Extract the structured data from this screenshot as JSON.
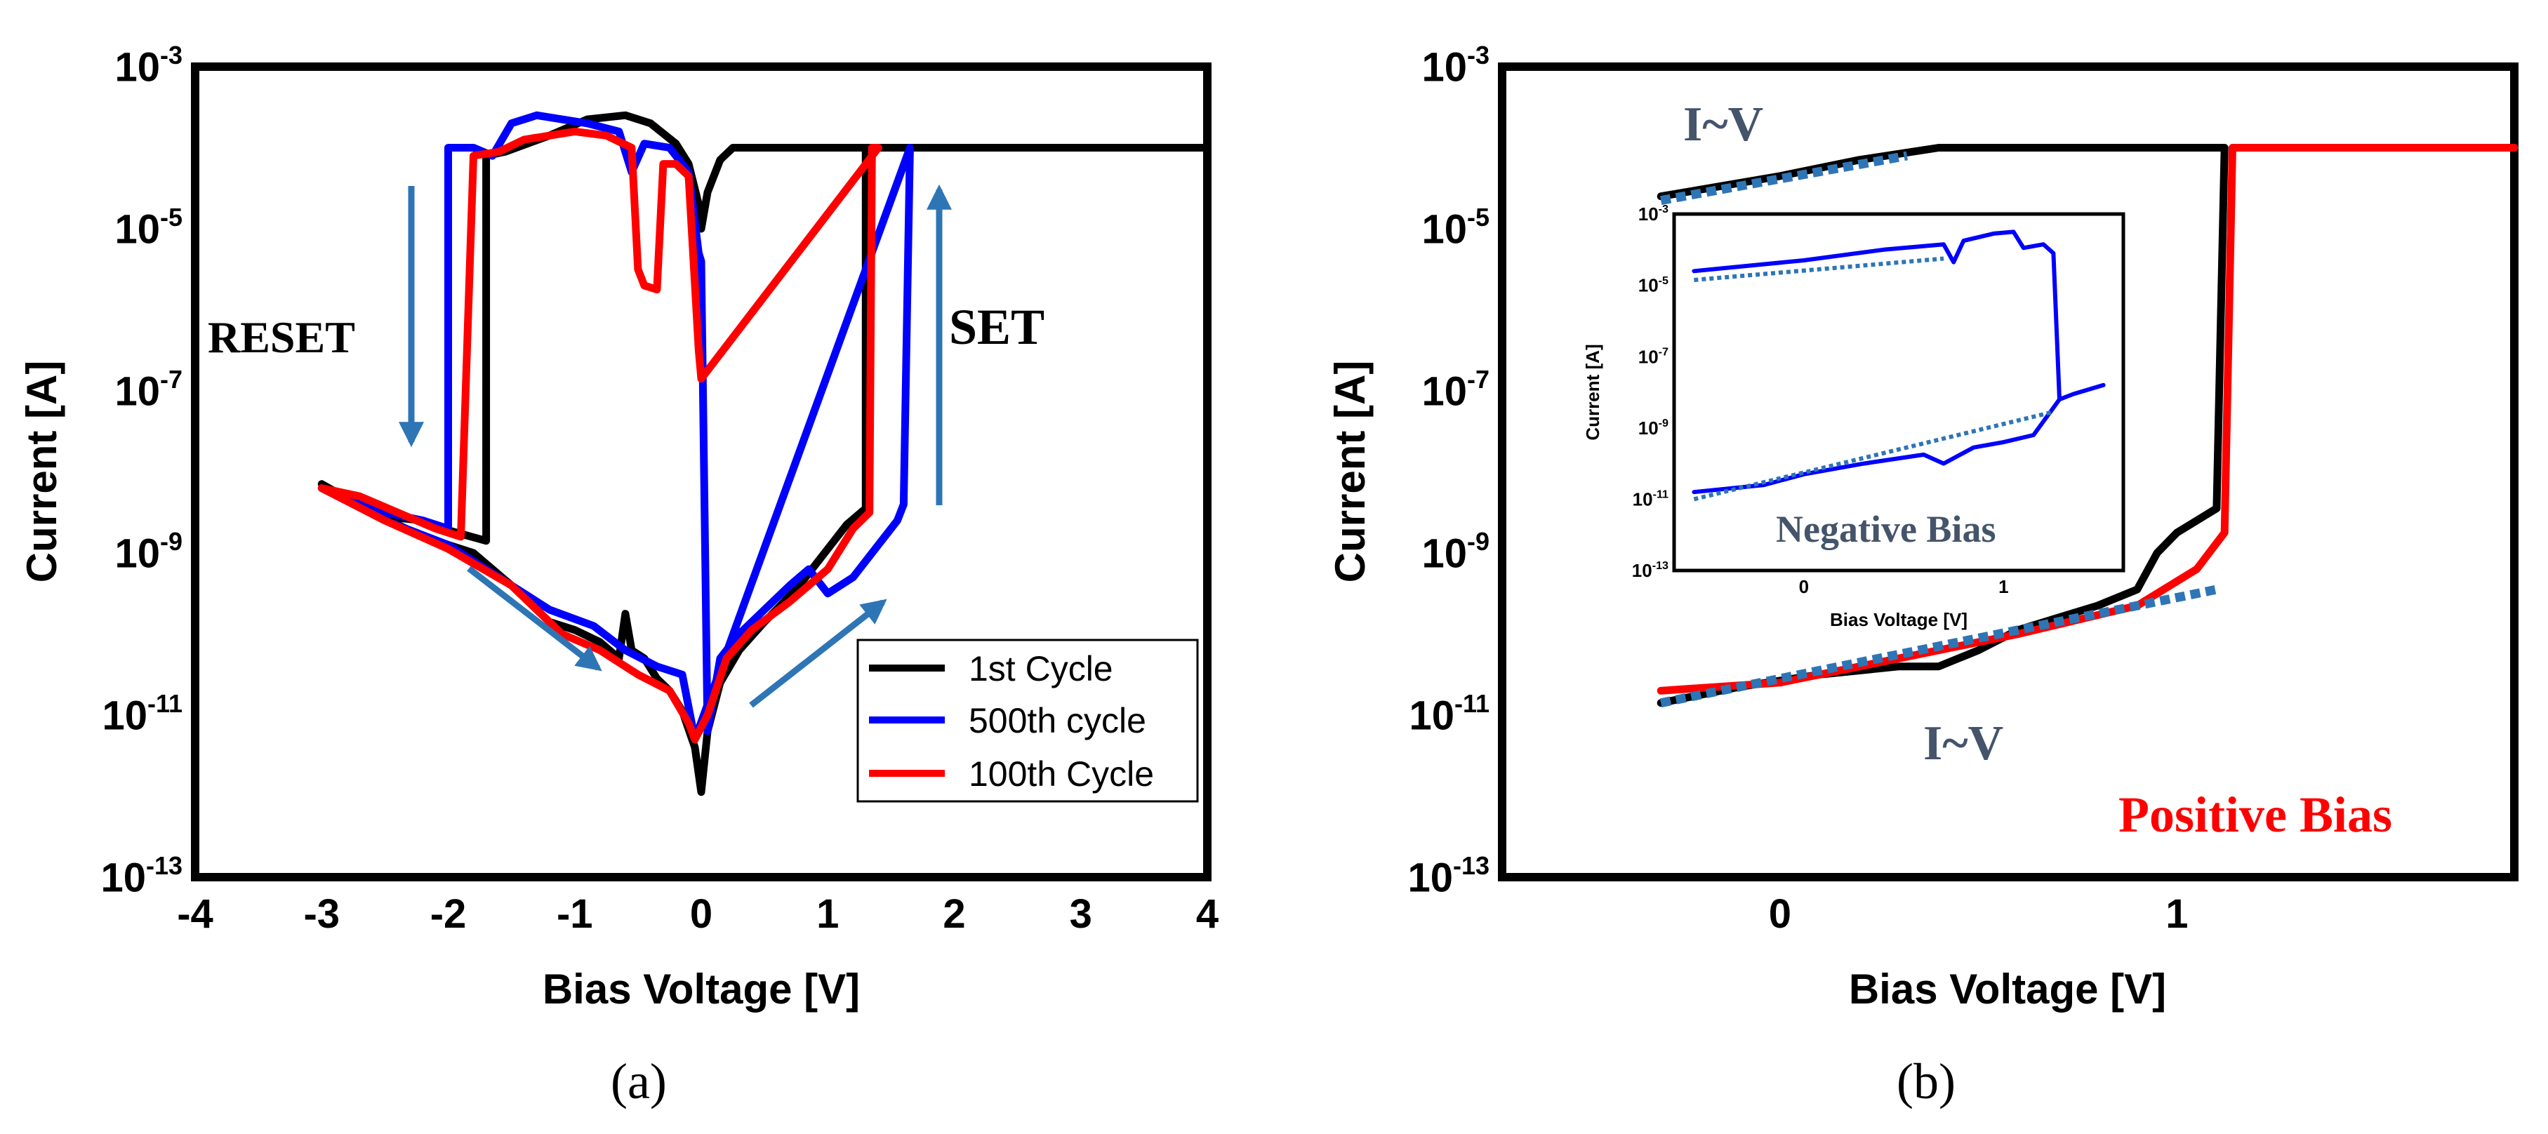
{
  "colors": {
    "black_curve": "#000000",
    "blue_curve": "#0000ff",
    "red_curve": "#ff0000",
    "arrow": "#2e75b6",
    "fit": "#2e75b6",
    "label_slate": "#44546a",
    "label_red": "#ff0000"
  },
  "chart_data": [
    {
      "id": "a",
      "type": "line",
      "subfig_label": "(a)",
      "xlabel": "Bias Voltage [V]",
      "ylabel": "Current [A]",
      "yscale": "log",
      "xlim": [
        -4,
        4
      ],
      "ylim_exp": [
        -13,
        -3
      ],
      "x_ticks": [
        -4,
        -3,
        -2,
        -1,
        0,
        1,
        2,
        3,
        4
      ],
      "x_tick_labels": [
        "-4",
        "-3",
        "-2",
        "-1",
        "0",
        "1",
        "2",
        "3",
        "4"
      ],
      "y_ticks_exp": [
        -13,
        -11,
        -9,
        -7,
        -5,
        -3
      ],
      "y_tick_base": "10",
      "y_tick_exponents": [
        "-13",
        "-11",
        "-9",
        "-7",
        "-5",
        "-3"
      ],
      "annotations": [
        "RESET",
        "SET"
      ],
      "legend": [
        "1st Cycle",
        "500th cycle",
        "100th Cycle"
      ],
      "series": [
        {
          "name": "1st Cycle",
          "color": "#000000",
          "points": [
            [
              -3.0,
              -8.15
            ],
            [
              -2.9,
              -8.25
            ],
            [
              -2.7,
              -8.4
            ],
            [
              -2.5,
              -8.55
            ],
            [
              -2.2,
              -8.6
            ],
            [
              -2.0,
              -8.72
            ],
            [
              -1.7,
              -8.85
            ],
            [
              -1.7,
              -4.1
            ],
            [
              -1.55,
              -4.05
            ],
            [
              -1.2,
              -3.85
            ],
            [
              -0.9,
              -3.65
            ],
            [
              -0.6,
              -3.6
            ],
            [
              -0.4,
              -3.7
            ],
            [
              -0.2,
              -3.95
            ],
            [
              -0.1,
              -4.2
            ],
            [
              -0.02,
              -4.7
            ],
            [
              0.0,
              -5.0
            ],
            [
              0.05,
              -4.55
            ],
            [
              0.15,
              -4.15
            ],
            [
              0.25,
              -4.0
            ],
            [
              0.6,
              -4.0
            ],
            [
              1.0,
              -4.0
            ],
            [
              3.0,
              -4.0
            ],
            [
              4.0,
              -4.0
            ],
            [
              1.3,
              -4.0
            ],
            [
              1.3,
              -8.45
            ],
            [
              1.15,
              -8.65
            ],
            [
              1.0,
              -8.95
            ],
            [
              0.75,
              -9.45
            ],
            [
              0.5,
              -9.85
            ],
            [
              0.3,
              -10.2
            ],
            [
              0.15,
              -10.6
            ],
            [
              0.05,
              -11.2
            ],
            [
              0.0,
              -11.95
            ],
            [
              -0.05,
              -11.4
            ],
            [
              -0.15,
              -10.95
            ],
            [
              -0.25,
              -10.7
            ],
            [
              -0.35,
              -10.55
            ],
            [
              -0.45,
              -10.3
            ],
            [
              -0.55,
              -10.2
            ],
            [
              -0.6,
              -9.75
            ],
            [
              -0.65,
              -10.3
            ],
            [
              -0.8,
              -10.1
            ],
            [
              -1.0,
              -9.95
            ],
            [
              -1.2,
              -9.85
            ],
            [
              -1.5,
              -9.4
            ],
            [
              -1.8,
              -9.0
            ],
            [
              -2.2,
              -8.8
            ],
            [
              -2.6,
              -8.5
            ],
            [
              -3.0,
              -8.15
            ]
          ]
        },
        {
          "name": "500th cycle",
          "color": "#0000ff",
          "points": [
            [
              -3.0,
              -8.2
            ],
            [
              -2.8,
              -8.3
            ],
            [
              -2.5,
              -8.5
            ],
            [
              -2.2,
              -8.6
            ],
            [
              -2.0,
              -8.7
            ],
            [
              -2.0,
              -4.0
            ],
            [
              -1.8,
              -4.0
            ],
            [
              -1.65,
              -4.1
            ],
            [
              -1.5,
              -3.7
            ],
            [
              -1.3,
              -3.6
            ],
            [
              -1.1,
              -3.65
            ],
            [
              -0.9,
              -3.7
            ],
            [
              -0.65,
              -3.8
            ],
            [
              -0.55,
              -4.3
            ],
            [
              -0.45,
              -3.95
            ],
            [
              -0.25,
              -4.0
            ],
            [
              -0.1,
              -4.3
            ],
            [
              -0.02,
              -5.3
            ],
            [
              0.0,
              -5.4
            ],
            [
              0.05,
              -11.2
            ],
            [
              0.15,
              -10.3
            ],
            [
              0.3,
              -10.0
            ],
            [
              0.5,
              -9.7
            ],
            [
              0.7,
              -9.4
            ],
            [
              0.85,
              -9.2
            ],
            [
              1.0,
              -9.5
            ],
            [
              1.2,
              -9.3
            ],
            [
              1.4,
              -8.9
            ],
            [
              1.55,
              -8.6
            ],
            [
              1.6,
              -8.4
            ],
            [
              1.65,
              -4.0
            ],
            [
              -0.05,
              -11.3
            ],
            [
              -0.15,
              -10.5
            ],
            [
              -0.35,
              -10.4
            ],
            [
              -0.6,
              -10.2
            ],
            [
              -0.85,
              -9.9
            ],
            [
              -1.2,
              -9.7
            ],
            [
              -1.6,
              -9.3
            ],
            [
              -2.0,
              -8.9
            ],
            [
              -2.5,
              -8.6
            ],
            [
              -3.0,
              -8.2
            ]
          ]
        },
        {
          "name": "100th Cycle",
          "color": "#ff0000",
          "points": [
            [
              -3.0,
              -8.2
            ],
            [
              -2.7,
              -8.3
            ],
            [
              -2.4,
              -8.5
            ],
            [
              -2.1,
              -8.7
            ],
            [
              -1.9,
              -8.8
            ],
            [
              -1.8,
              -4.1
            ],
            [
              -1.6,
              -4.05
            ],
            [
              -1.4,
              -3.9
            ],
            [
              -1.0,
              -3.8
            ],
            [
              -0.75,
              -3.85
            ],
            [
              -0.55,
              -4.0
            ],
            [
              -0.5,
              -5.5
            ],
            [
              -0.45,
              -5.7
            ],
            [
              -0.35,
              -5.75
            ],
            [
              -0.3,
              -4.2
            ],
            [
              -0.2,
              -4.2
            ],
            [
              -0.1,
              -4.35
            ],
            [
              -0.02,
              -6.5
            ],
            [
              0.0,
              -6.85
            ],
            [
              1.4,
              -4.0
            ],
            [
              1.35,
              -4.0
            ],
            [
              1.33,
              -8.5
            ],
            [
              1.2,
              -8.7
            ],
            [
              1.0,
              -9.2
            ],
            [
              0.7,
              -9.6
            ],
            [
              0.4,
              -9.95
            ],
            [
              0.2,
              -10.3
            ],
            [
              0.05,
              -11.0
            ],
            [
              -0.05,
              -11.3
            ],
            [
              -0.1,
              -11.1
            ],
            [
              -0.25,
              -10.7
            ],
            [
              -0.5,
              -10.5
            ],
            [
              -0.8,
              -10.2
            ],
            [
              -1.1,
              -10.0
            ],
            [
              -1.5,
              -9.4
            ],
            [
              -2.0,
              -8.95
            ],
            [
              -2.5,
              -8.6
            ],
            [
              -3.0,
              -8.2
            ]
          ]
        }
      ]
    },
    {
      "id": "b",
      "type": "line",
      "subfig_label": "(b)",
      "xlabel": "Bias Voltage [V]",
      "ylabel": "Current [A]",
      "yscale": "log",
      "xlim": [
        -0.7,
        1.85
      ],
      "ylim_exp": [
        -13,
        -3
      ],
      "x_ticks": [
        0,
        1
      ],
      "x_tick_labels": [
        "0",
        "1"
      ],
      "y_ticks_exp": [
        -13,
        -11,
        -9,
        -7,
        -5,
        -3
      ],
      "y_tick_base": "10",
      "y_tick_exponents": [
        "-13",
        "-11",
        "-9",
        "-7",
        "-5",
        "-3"
      ],
      "annotations": [
        "I~V",
        "I~V",
        "Positive Bias"
      ],
      "series": [
        {
          "name": "black",
          "color": "#000000",
          "points": [
            [
              -0.3,
              -4.6
            ],
            [
              0.0,
              -4.35
            ],
            [
              0.2,
              -4.15
            ],
            [
              0.4,
              -4.0
            ],
            [
              1.12,
              -4.0
            ],
            [
              1.12,
              -4.0
            ],
            [
              1.1,
              -8.45
            ],
            [
              1.05,
              -8.6
            ],
            [
              1.0,
              -8.75
            ],
            [
              0.95,
              -9.0
            ],
            [
              0.9,
              -9.45
            ],
            [
              0.8,
              -9.65
            ],
            [
              0.6,
              -9.95
            ],
            [
              0.5,
              -10.2
            ],
            [
              0.4,
              -10.4
            ],
            [
              0.3,
              -10.4
            ],
            [
              0.1,
              -10.5
            ],
            [
              -0.1,
              -10.65
            ],
            [
              -0.3,
              -10.85
            ]
          ]
        },
        {
          "name": "red",
          "color": "#ff0000",
          "points": [
            [
              -0.3,
              -10.7
            ],
            [
              0.0,
              -10.6
            ],
            [
              0.3,
              -10.3
            ],
            [
              0.6,
              -10.0
            ],
            [
              0.9,
              -9.65
            ],
            [
              1.05,
              -9.2
            ],
            [
              1.12,
              -8.75
            ],
            [
              1.14,
              -4.0
            ],
            [
              1.85,
              -4.0
            ]
          ]
        },
        {
          "name": "I~V fit (high)",
          "color": "#2e75b6",
          "dashed": true,
          "points": [
            [
              -0.3,
              -4.65
            ],
            [
              0.32,
              -4.1
            ]
          ]
        },
        {
          "name": "I~V fit (low)",
          "color": "#2e75b6",
          "dashed": true,
          "points": [
            [
              -0.3,
              -10.85
            ],
            [
              1.1,
              -9.45
            ]
          ]
        }
      ],
      "inset": {
        "title": "Negative Bias",
        "xlabel": "Bias Voltage [V]",
        "ylabel": "Current [A]",
        "xlim": [
          -0.65,
          1.6
        ],
        "ylim_exp": [
          -13,
          -3
        ],
        "x_ticks": [
          0,
          1
        ],
        "x_tick_labels": [
          "0",
          "1"
        ],
        "y_ticks_exp": [
          -13,
          -11,
          -9,
          -7,
          -5,
          -3
        ],
        "y_tick_base": "10",
        "y_tick_exponents": [
          "-13",
          "-11",
          "-9",
          "-7",
          "-5",
          "-3"
        ],
        "series": [
          {
            "name": "blue",
            "color": "#0000ff",
            "points": [
              [
                -0.55,
                -4.6
              ],
              [
                0.0,
                -4.3
              ],
              [
                0.4,
                -4.0
              ],
              [
                0.7,
                -3.85
              ],
              [
                0.75,
                -4.35
              ],
              [
                0.8,
                -3.75
              ],
              [
                0.95,
                -3.55
              ],
              [
                1.05,
                -3.5
              ],
              [
                1.1,
                -3.95
              ],
              [
                1.2,
                -3.85
              ],
              [
                1.25,
                -4.1
              ],
              [
                1.28,
                -8.2
              ],
              [
                1.35,
                -8.05
              ],
              [
                1.5,
                -7.8
              ]
            ]
          },
          {
            "name": "blue low",
            "color": "#0000ff",
            "points": [
              [
                -0.55,
                -10.8
              ],
              [
                -0.2,
                -10.6
              ],
              [
                0.0,
                -10.3
              ],
              [
                0.3,
                -10.0
              ],
              [
                0.6,
                -9.75
              ],
              [
                0.7,
                -10.0
              ],
              [
                0.85,
                -9.55
              ],
              [
                1.0,
                -9.4
              ],
              [
                1.15,
                -9.2
              ],
              [
                1.28,
                -8.2
              ]
            ]
          },
          {
            "name": "fit high",
            "color": "#2e75b6",
            "dashed": true,
            "points": [
              [
                -0.55,
                -4.85
              ],
              [
                0.7,
                -4.25
              ]
            ]
          },
          {
            "name": "fit low",
            "color": "#2e75b6",
            "dashed": true,
            "points": [
              [
                -0.55,
                -11.0
              ],
              [
                1.25,
                -8.55
              ]
            ]
          }
        ]
      }
    }
  ]
}
